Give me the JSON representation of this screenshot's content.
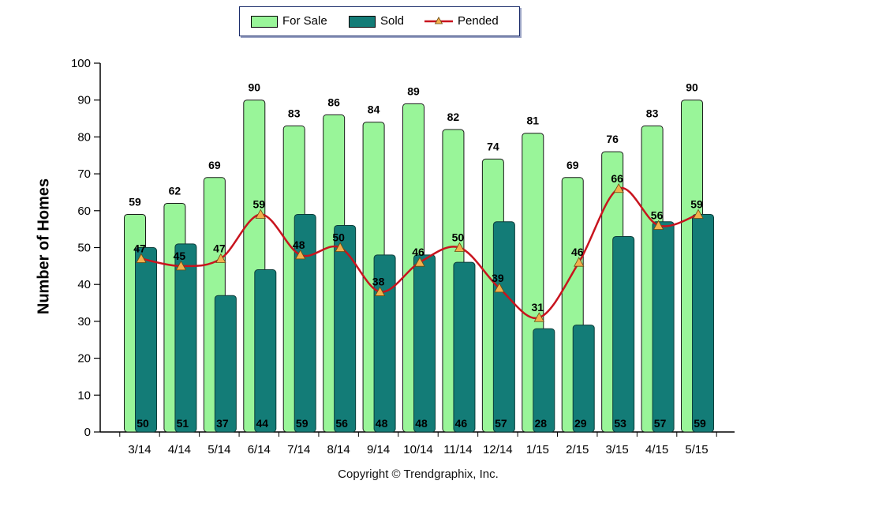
{
  "legend": {
    "for_sale": "For Sale",
    "sold": "Sold",
    "pended": "Pended"
  },
  "copyright": "Copyright © Trendgraphix, Inc.",
  "colors": {
    "for_sale": "#99f599",
    "sold": "#137c77",
    "pended": "#c8141e",
    "pended_marker": "#f2b04d"
  },
  "chart_data": {
    "type": "bar",
    "title": "",
    "xlabel": "",
    "ylabel": "Number of Homes",
    "ylim": [
      0,
      100
    ],
    "yticks": [
      0,
      10,
      20,
      30,
      40,
      50,
      60,
      70,
      80,
      90,
      100
    ],
    "grid": false,
    "legend_position": "top-center",
    "categories": [
      "3/14",
      "4/14",
      "5/14",
      "6/14",
      "7/14",
      "8/14",
      "9/14",
      "10/14",
      "11/14",
      "12/14",
      "1/15",
      "2/15",
      "3/15",
      "4/15",
      "5/15"
    ],
    "series": [
      {
        "name": "For Sale",
        "type": "bar",
        "values": [
          59,
          62,
          69,
          90,
          83,
          86,
          84,
          89,
          82,
          74,
          81,
          69,
          76,
          83,
          90
        ]
      },
      {
        "name": "Sold",
        "type": "bar",
        "values": [
          50,
          51,
          37,
          44,
          59,
          56,
          48,
          48,
          46,
          57,
          28,
          29,
          53,
          57,
          59
        ]
      },
      {
        "name": "Pended",
        "type": "line",
        "values": [
          47,
          45,
          47,
          59,
          48,
          50,
          38,
          46,
          50,
          39,
          31,
          46,
          66,
          56,
          59
        ]
      }
    ]
  }
}
